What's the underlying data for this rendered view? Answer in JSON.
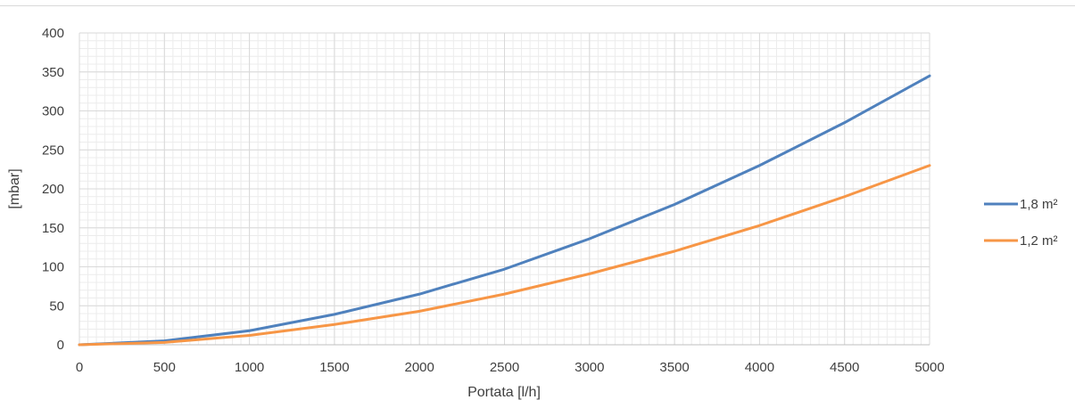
{
  "chart_data": {
    "type": "line",
    "xlabel": "Portata [l/h]",
    "ylabel": "[mbar]",
    "xlim": [
      0,
      5000
    ],
    "ylim": [
      0,
      400
    ],
    "x_ticks": [
      "0",
      "500",
      "1000",
      "1500",
      "2000",
      "2500",
      "3000",
      "3500",
      "4000",
      "4500",
      "5000"
    ],
    "y_ticks": [
      "0",
      "50",
      "100",
      "150",
      "200",
      "250",
      "300",
      "350",
      "400"
    ],
    "grid": true,
    "legend_position": "right",
    "x": [
      0,
      500,
      1000,
      1500,
      2000,
      2500,
      3000,
      3500,
      4000,
      4500,
      5000
    ],
    "series": [
      {
        "name": "1,8 m²",
        "color": "#4f81bd",
        "values": [
          0,
          5,
          18,
          39,
          65,
          97,
          136,
          180,
          230,
          285,
          345
        ]
      },
      {
        "name": "1,2 m²",
        "color": "#f79646",
        "values": [
          0,
          3,
          12,
          26,
          43,
          65,
          91,
          120,
          153,
          190,
          230
        ]
      }
    ]
  }
}
